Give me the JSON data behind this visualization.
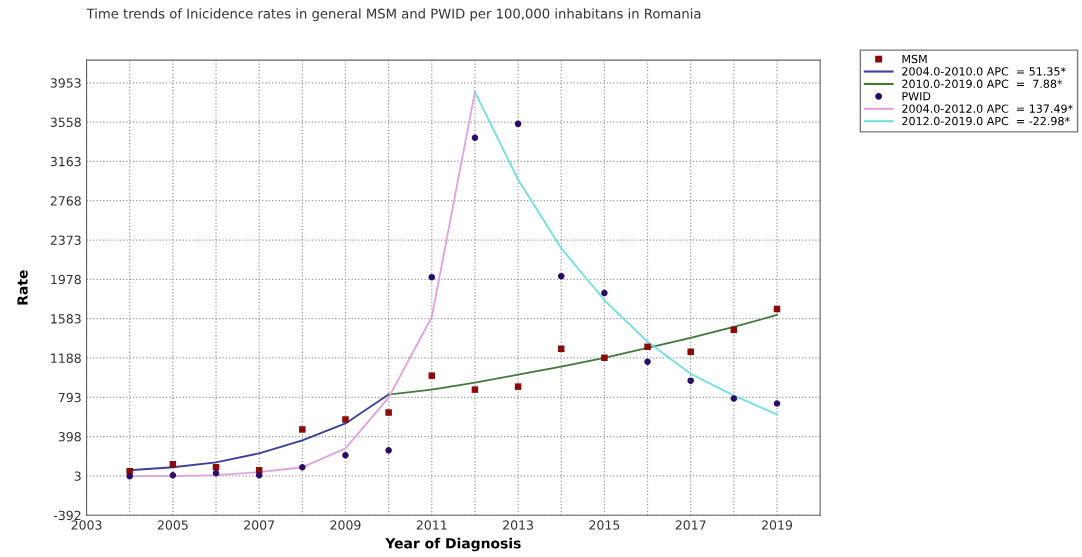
{
  "chart_data": {
    "type": "scatter",
    "title": "Time trends of Inicidence rates in general MSM and PWID per 100,000 inhabitans in Romania",
    "xlabel": "Year of Diagnosis",
    "ylabel": "Rate",
    "xlim": [
      2003,
      2020
    ],
    "ylim": [
      -392,
      4180
    ],
    "xticks": [
      2003,
      {
        "value": 2004,
        "label": null
      },
      2005,
      {
        "value": 2006,
        "label": null
      },
      2007,
      {
        "value": 2008,
        "label": null
      },
      2009,
      {
        "value": 2010,
        "label": null
      },
      2011,
      {
        "value": 2012,
        "label": null
      },
      2013,
      {
        "value": 2014,
        "label": null
      },
      2015,
      {
        "value": 2016,
        "label": null
      },
      2017,
      {
        "value": 2018,
        "label": null
      },
      2019
    ],
    "yticks": [
      -392,
      3,
      398,
      793,
      1188,
      1583,
      1978,
      2373,
      2768,
      3163,
      3558,
      3953
    ],
    "grid": true,
    "legend": "top right",
    "series": [
      {
        "name": "MSM",
        "marker": "square",
        "color": "#8b0a0a",
        "x": [
          2004,
          2005,
          2006,
          2007,
          2008,
          2009,
          2010,
          2011,
          2012,
          2013,
          2014,
          2015,
          2016,
          2017,
          2018,
          2019
        ],
        "values": [
          50,
          120,
          90,
          60,
          470,
          570,
          640,
          1010,
          870,
          900,
          1280,
          1190,
          1300,
          1250,
          1470,
          1680
        ]
      },
      {
        "name": "2004.0-2010.0 APC  = 51.35*",
        "type": "line",
        "marker": "none",
        "color": "#3a3f9a",
        "x": [
          2004,
          2005,
          2006,
          2007,
          2008,
          2009,
          2010
        ],
        "values": [
          60,
          90,
          140,
          230,
          360,
          530,
          820
        ]
      },
      {
        "name": "2010.0-2019.0 APC  =  7.88*",
        "type": "line",
        "marker": "none",
        "color": "#3f7a3a",
        "x": [
          2010,
          2011,
          2012,
          2013,
          2014,
          2015,
          2016,
          2017,
          2018,
          2019
        ],
        "values": [
          820,
          870,
          940,
          1020,
          1100,
          1190,
          1290,
          1390,
          1500,
          1620
        ]
      },
      {
        "name": "PWID",
        "marker": "circle",
        "color": "#2a0a6b",
        "x": [
          2004,
          2005,
          2006,
          2007,
          2008,
          2009,
          2010,
          2011,
          2012,
          2013,
          2014,
          2015,
          2016,
          2017,
          2018,
          2019
        ],
        "values": [
          0,
          10,
          30,
          10,
          90,
          210,
          260,
          2000,
          3400,
          3540,
          2010,
          1840,
          1150,
          960,
          780,
          730
        ]
      },
      {
        "name": "2004.0-2012.0 APC  = 137.49*",
        "type": "line",
        "marker": "none",
        "color": "#e0a0e0",
        "x": [
          2004,
          2005,
          2006,
          2007,
          2008,
          2009,
          2010,
          2011,
          2012
        ],
        "values": [
          0,
          0,
          10,
          40,
          90,
          280,
          790,
          1600,
          3860
        ]
      },
      {
        "name": "2012.0-2019.0 APC  = -22.98*",
        "type": "line",
        "marker": "none",
        "color": "#6fe0e0",
        "x": [
          2012,
          2013,
          2014,
          2015,
          2016,
          2017,
          2018,
          2019
        ],
        "values": [
          3860,
          2980,
          2290,
          1770,
          1350,
          1030,
          810,
          620
        ]
      }
    ]
  }
}
